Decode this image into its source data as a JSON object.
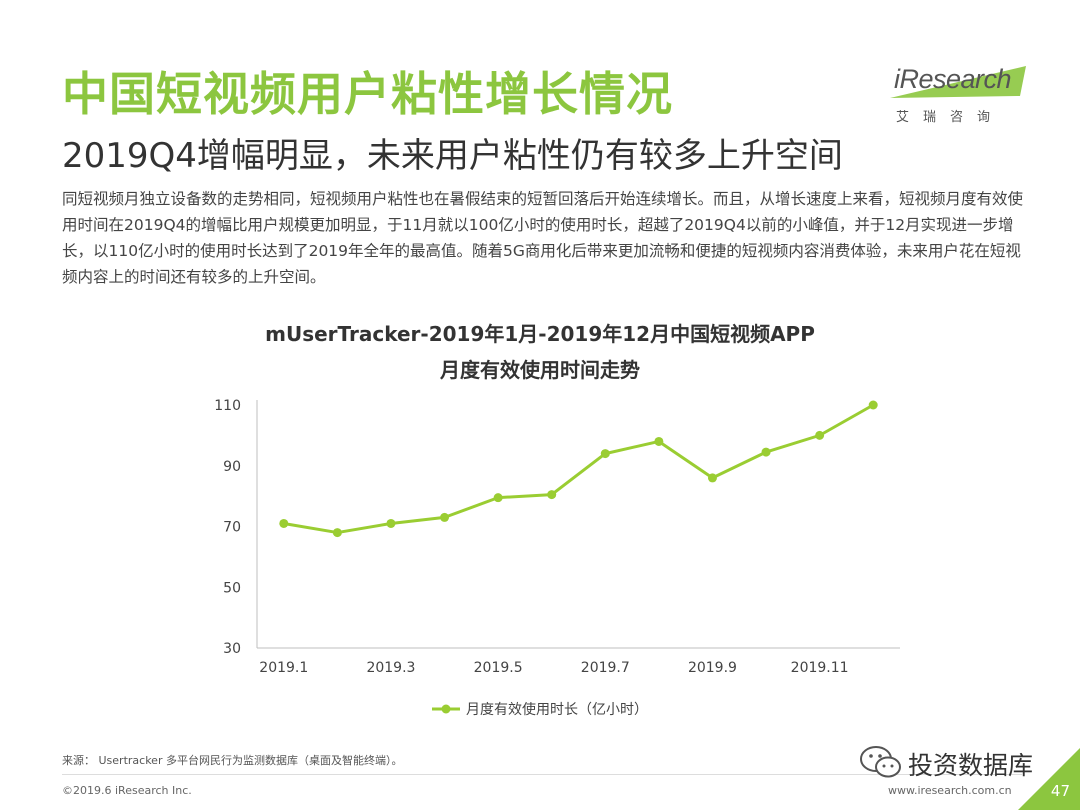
{
  "header": {
    "title": "中国短视频用户粘性增长情况",
    "subtitle": "2019Q4增幅明显，未来用户粘性仍有较多上升空间"
  },
  "logo": {
    "brand": "iResearch",
    "chinese": "艾瑞咨询"
  },
  "paragraph": "同短视频月独立设备数的走势相同，短视频用户粘性也在暑假结束的短暂回落后开始连续增长。而且，从增长速度上来看，短视频月度有效使用时间在2019Q4的增幅比用户规模更加明显，于11月就以100亿小时的使用时长，超越了2019Q4以前的小峰值，并于12月实现进一步增长，以110亿小时的使用时长达到了2019年全年的最高值。随着5G商用化后带来更加流畅和便捷的短视频内容消费体验，未来用户花在短视频内容上的时间还有较多的上升空间。",
  "chart_data": {
    "type": "line",
    "title": "mUserTracker-2019年1月-2019年12月中国短视频APP",
    "subtitle": "月度有效使用时间走势",
    "x": [
      "2019.1",
      "2019.2",
      "2019.3",
      "2019.4",
      "2019.5",
      "2019.6",
      "2019.7",
      "2019.8",
      "2019.9",
      "2019.10",
      "2019.11",
      "2019.12"
    ],
    "x_tick_labels": [
      "2019.1",
      "2019.3",
      "2019.5",
      "2019.7",
      "2019.9",
      "2019.11"
    ],
    "series": [
      {
        "name": "月度有效使用时长（亿小时）",
        "values": [
          71,
          68,
          71,
          73,
          79.5,
          80.5,
          94,
          98,
          86,
          94.5,
          100,
          110
        ]
      }
    ],
    "ylim": [
      30,
      110
    ],
    "y_ticks": [
      "30",
      "50",
      "70",
      "90",
      "110"
    ],
    "grid": false,
    "legend": "bottom-center",
    "color": "#9acd32"
  },
  "footer": {
    "source": "来源： Usertracker 多平台网民行为监测数据库（桌面及智能终端）。",
    "copyright": "©2019.6 iResearch Inc.",
    "site": "www.iresearch.com.cn",
    "watermark": "投资数据库",
    "page_number": "47"
  },
  "colors": {
    "accent": "#8cc63f",
    "text": "#333333"
  }
}
